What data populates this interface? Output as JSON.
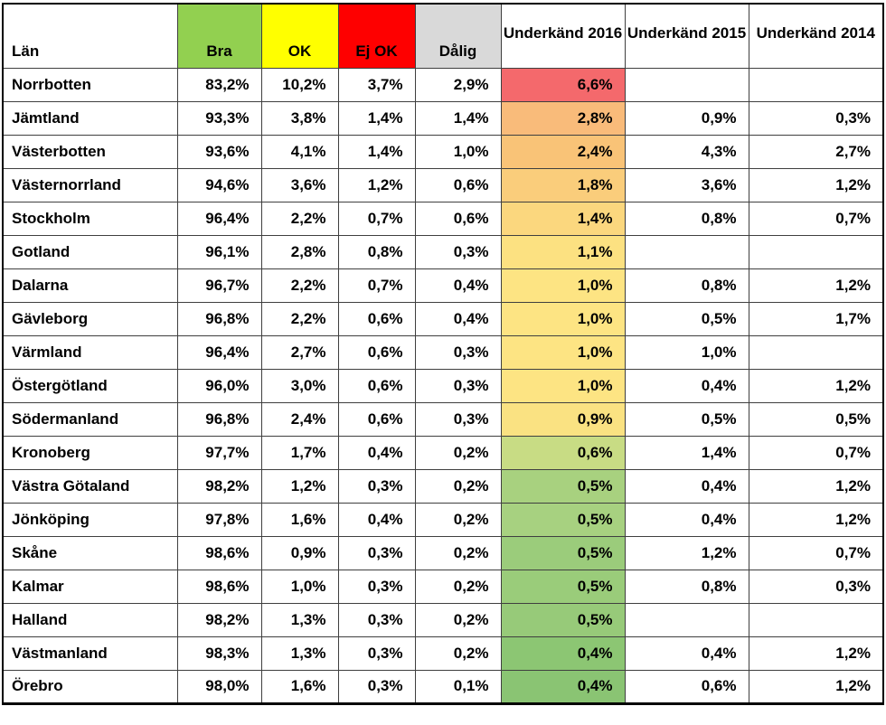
{
  "chart_data": {
    "type": "table",
    "title": "",
    "columns": [
      {
        "key": "lan",
        "label": "Län",
        "header_bg": "#ffffff"
      },
      {
        "key": "bra",
        "label": "Bra",
        "header_bg": "#92d050"
      },
      {
        "key": "ok",
        "label": "OK",
        "header_bg": "#ffff00"
      },
      {
        "key": "ejok",
        "label": "Ej OK",
        "header_bg": "#fe0000"
      },
      {
        "key": "dalig",
        "label": "Dålig",
        "header_bg": "#d9d9d9"
      },
      {
        "key": "u2016",
        "label": "Underkänd 2016",
        "header_bg": "#ffffff"
      },
      {
        "key": "u2015",
        "label": "Underkänd 2015",
        "header_bg": "#ffffff"
      },
      {
        "key": "u2014",
        "label": "Underkänd 2014",
        "header_bg": "#ffffff"
      }
    ],
    "rows": [
      {
        "lan": "Norrbotten",
        "bra": "83,2%",
        "ok": "10,2%",
        "ejok": "3,7%",
        "dalig": "2,9%",
        "u2016": "6,6%",
        "u2016_bg": "#f4696c",
        "u2015": "",
        "u2014": ""
      },
      {
        "lan": "Jämtland",
        "bra": "93,3%",
        "ok": "3,8%",
        "ejok": "1,4%",
        "dalig": "1,4%",
        "u2016": "2,8%",
        "u2016_bg": "#f9bb7a",
        "u2015": "0,9%",
        "u2014": "0,3%"
      },
      {
        "lan": "Västerbotten",
        "bra": "93,6%",
        "ok": "4,1%",
        "ejok": "1,4%",
        "dalig": "1,0%",
        "u2016": "2,4%",
        "u2016_bg": "#f9c377",
        "u2015": "4,3%",
        "u2014": "2,7%"
      },
      {
        "lan": "Västernorrland",
        "bra": "94,6%",
        "ok": "3,6%",
        "ejok": "1,2%",
        "dalig": "0,6%",
        "u2016": "1,8%",
        "u2016_bg": "#facd7b",
        "u2015": "3,6%",
        "u2014": "1,2%"
      },
      {
        "lan": "Stockholm",
        "bra": "96,4%",
        "ok": "2,2%",
        "ejok": "0,7%",
        "dalig": "0,6%",
        "u2016": "1,4%",
        "u2016_bg": "#fbd77e",
        "u2015": "0,8%",
        "u2014": "0,7%"
      },
      {
        "lan": "Gotland",
        "bra": "96,1%",
        "ok": "2,8%",
        "ejok": "0,8%",
        "dalig": "0,3%",
        "u2016": "1,1%",
        "u2016_bg": "#fce181",
        "u2015": "",
        "u2014": ""
      },
      {
        "lan": "Dalarna",
        "bra": "96,7%",
        "ok": "2,2%",
        "ejok": "0,7%",
        "dalig": "0,4%",
        "u2016": "1,0%",
        "u2016_bg": "#fde483",
        "u2015": "0,8%",
        "u2014": "1,2%"
      },
      {
        "lan": "Gävleborg",
        "bra": "96,8%",
        "ok": "2,2%",
        "ejok": "0,6%",
        "dalig": "0,4%",
        "u2016": "1,0%",
        "u2016_bg": "#fde483",
        "u2015": "0,5%",
        "u2014": "1,7%"
      },
      {
        "lan": "Värmland",
        "bra": "96,4%",
        "ok": "2,7%",
        "ejok": "0,6%",
        "dalig": "0,3%",
        "u2016": "1,0%",
        "u2016_bg": "#fde483",
        "u2015": "1,0%",
        "u2014": ""
      },
      {
        "lan": "Östergötland",
        "bra": "96,0%",
        "ok": "3,0%",
        "ejok": "0,6%",
        "dalig": "0,3%",
        "u2016": "1,0%",
        "u2016_bg": "#fde483",
        "u2015": "0,4%",
        "u2014": "1,2%"
      },
      {
        "lan": "Södermanland",
        "bra": "96,8%",
        "ok": "2,4%",
        "ejok": "0,6%",
        "dalig": "0,3%",
        "u2016": "0,9%",
        "u2016_bg": "#fae282",
        "u2015": "0,5%",
        "u2014": "0,5%"
      },
      {
        "lan": "Kronoberg",
        "bra": "97,7%",
        "ok": "1,7%",
        "ejok": "0,4%",
        "dalig": "0,2%",
        "u2016": "0,6%",
        "u2016_bg": "#c8dc84",
        "u2015": "1,4%",
        "u2014": "0,7%"
      },
      {
        "lan": "Västra Götaland",
        "bra": "98,2%",
        "ok": "1,2%",
        "ejok": "0,3%",
        "dalig": "0,2%",
        "u2016": "0,5%",
        "u2016_bg": "#a8d17f",
        "u2015": "0,4%",
        "u2014": "1,2%"
      },
      {
        "lan": "Jönköping",
        "bra": "97,8%",
        "ok": "1,6%",
        "ejok": "0,4%",
        "dalig": "0,2%",
        "u2016": "0,5%",
        "u2016_bg": "#a7d180",
        "u2015": "0,4%",
        "u2014": "1,2%"
      },
      {
        "lan": "Skåne",
        "bra": "98,6%",
        "ok": "0,9%",
        "ejok": "0,3%",
        "dalig": "0,2%",
        "u2016": "0,5%",
        "u2016_bg": "#9bcc7b",
        "u2015": "1,2%",
        "u2014": "0,7%"
      },
      {
        "lan": "Kalmar",
        "bra": "98,6%",
        "ok": "1,0%",
        "ejok": "0,3%",
        "dalig": "0,2%",
        "u2016": "0,5%",
        "u2016_bg": "#9acc7a",
        "u2015": "0,8%",
        "u2014": "0,3%"
      },
      {
        "lan": "Halland",
        "bra": "98,2%",
        "ok": "1,3%",
        "ejok": "0,3%",
        "dalig": "0,2%",
        "u2016": "0,5%",
        "u2016_bg": "#97ca79",
        "u2015": "",
        "u2014": ""
      },
      {
        "lan": "Västmanland",
        "bra": "98,3%",
        "ok": "1,3%",
        "ejok": "0,3%",
        "dalig": "0,2%",
        "u2016": "0,4%",
        "u2016_bg": "#8cc673",
        "u2015": "0,4%",
        "u2014": "1,2%"
      },
      {
        "lan": "Örebro",
        "bra": "98,0%",
        "ok": "1,6%",
        "ejok": "0,3%",
        "dalig": "0,1%",
        "u2016": "0,4%",
        "u2016_bg": "#8ac473",
        "u2015": "0,6%",
        "u2014": "1,2%"
      }
    ]
  },
  "colors": {
    "header_bra": "#92d050",
    "header_ok": "#ffff00",
    "header_ejok": "#fe0000",
    "header_dalig": "#d9d9d9",
    "scale_worst": "#f4696c",
    "scale_mid": "#fde483",
    "scale_best": "#8ac473",
    "grid_line": "#3f3f3f",
    "outer_border": "#000000"
  }
}
